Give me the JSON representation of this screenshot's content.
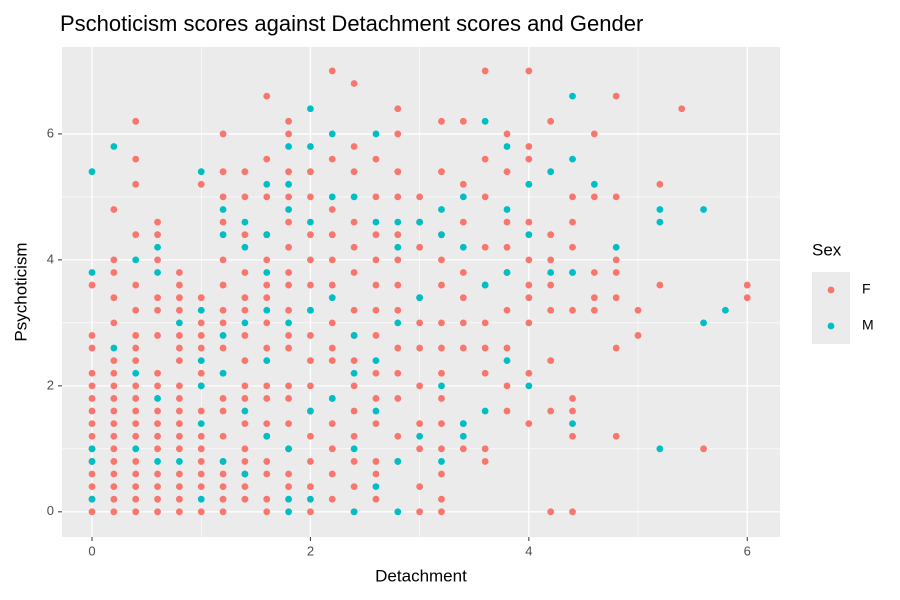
{
  "chart_data": {
    "type": "scatter",
    "title": "Pschoticism scores against Detachment scores and Gender",
    "x_label": "Detachment",
    "y_label": "Psychoticism",
    "legend_title": "Sex",
    "xlim": [
      -0.275,
      6.3
    ],
    "ylim": [
      -0.4,
      7.38
    ],
    "xticks": [
      0,
      2,
      4,
      6
    ],
    "yticks": [
      0,
      2,
      4,
      6
    ],
    "grid": true,
    "legend": "right",
    "series": [
      {
        "name": "F",
        "color": "#f8766d",
        "x": [
          0,
          0,
          0,
          0,
          0,
          0,
          0,
          0,
          0,
          0,
          0,
          0,
          0,
          0,
          0,
          0.2,
          0.2,
          0.2,
          0.2,
          0.2,
          0.2,
          0.2,
          0.2,
          0.2,
          0.2,
          0.2,
          0.2,
          0.2,
          0.2,
          0.2,
          0.2,
          0.2,
          0.2,
          0.4,
          0.4,
          0.4,
          0.4,
          0.4,
          0.4,
          0.4,
          0.4,
          0.4,
          0.4,
          0.4,
          0.4,
          0.4,
          0.4,
          0.4,
          0.4,
          0.4,
          0.4,
          0.4,
          0.6,
          0.6,
          0.6,
          0.6,
          0.6,
          0.6,
          0.6,
          0.6,
          0.6,
          0.6,
          0.6,
          0.6,
          0.6,
          0.6,
          0.6,
          0.6,
          0.8,
          0.8,
          0.8,
          0.8,
          0.8,
          0.8,
          0.8,
          0.8,
          0.8,
          0.8,
          0.8,
          0.8,
          0.8,
          0.8,
          0.8,
          0.8,
          0.8,
          1,
          1,
          1,
          1,
          1,
          1,
          1,
          1,
          1,
          1,
          1,
          1,
          1,
          1,
          1.2,
          1.2,
          1.2,
          1.2,
          1.2,
          1.2,
          1.2,
          1.2,
          1.2,
          1.2,
          1.2,
          1.2,
          1.2,
          1.2,
          1.2,
          1.2,
          1.2,
          1.2,
          1.4,
          1.4,
          1.4,
          1.4,
          1.4,
          1.4,
          1.4,
          1.4,
          1.4,
          1.4,
          1.4,
          1.4,
          1.4,
          1.4,
          1.4,
          1.4,
          1.6,
          1.6,
          1.6,
          1.6,
          1.6,
          1.6,
          1.6,
          1.6,
          1.6,
          1.6,
          1.6,
          1.6,
          1.6,
          1.6,
          1.6,
          1.6,
          1.6,
          1.8,
          1.8,
          1.8,
          1.8,
          1.8,
          1.8,
          1.8,
          1.8,
          1.8,
          1.8,
          1.8,
          1.8,
          1.8,
          1.8,
          1.8,
          1.8,
          1.8,
          2,
          2,
          2,
          2,
          2,
          2,
          2,
          2,
          2,
          2,
          2,
          2,
          2,
          2,
          2.2,
          2.2,
          2.2,
          2.2,
          2.2,
          2.2,
          2.2,
          2.2,
          2.2,
          2.2,
          2.2,
          2.2,
          2.2,
          2.2,
          2.4,
          2.4,
          2.4,
          2.4,
          2.4,
          2.4,
          2.4,
          2.4,
          2.4,
          2.4,
          2.4,
          2.4,
          2.4,
          2.4,
          2.4,
          2.6,
          2.6,
          2.6,
          2.6,
          2.6,
          2.6,
          2.6,
          2.6,
          2.6,
          2.6,
          2.6,
          2.6,
          2.6,
          2.8,
          2.8,
          2.8,
          2.8,
          2.8,
          2.8,
          2.8,
          2.8,
          2.8,
          2.8,
          2.8,
          2.8,
          2.8,
          3,
          3,
          3,
          3,
          3,
          3,
          3,
          3,
          3,
          3,
          3,
          3.2,
          3.2,
          3.2,
          3.2,
          3.2,
          3.2,
          3.2,
          3.2,
          3.2,
          3.2,
          3.2,
          3.2,
          3.2,
          3.2,
          3.4,
          3.4,
          3.4,
          3.4,
          3.4,
          3.4,
          3.4,
          3.4,
          3.4,
          3.6,
          3.6,
          3.6,
          3.6,
          3.6,
          3.6,
          3.6,
          3.6,
          3.6,
          3.6,
          3.8,
          3.8,
          3.8,
          3.8,
          3.8,
          3.8,
          3.8,
          3.8,
          3.8,
          4,
          4,
          4,
          4,
          4,
          4,
          4,
          4,
          4,
          4,
          4.2,
          4.2,
          4.2,
          4.2,
          4.2,
          4.2,
          4.2,
          4.2,
          4.4,
          4.4,
          4.4,
          4.4,
          4.4,
          4.4,
          4.4,
          4.4,
          4.4,
          4.6,
          4.6,
          4.6,
          4.6,
          4.6,
          4.8,
          4.8,
          4.8,
          4.8,
          4.8,
          4.8,
          4.8,
          5,
          5,
          5.2,
          5.2,
          5.4,
          5.6,
          6,
          6
        ],
        "values": [
          0,
          0.2,
          0.4,
          0.6,
          0.8,
          1,
          1.2,
          1.4,
          1.6,
          1.8,
          2,
          2.2,
          2.6,
          2.8,
          3.6,
          0,
          0.2,
          0.4,
          0.6,
          0.8,
          1,
          1.2,
          1.4,
          1.6,
          1.8,
          2,
          2.2,
          2.4,
          3,
          3.4,
          3.8,
          4,
          4.8,
          0,
          0.2,
          0.4,
          0.6,
          0.8,
          1.2,
          1.4,
          1.6,
          1.8,
          2,
          2.4,
          2.6,
          2.8,
          3.2,
          3.6,
          4.4,
          5.2,
          5.6,
          6.2,
          0,
          0.2,
          0.4,
          0.6,
          1,
          1.2,
          1.4,
          1.6,
          2,
          2.2,
          2.8,
          3.2,
          3.4,
          4,
          4.4,
          4.6,
          0,
          0.2,
          0.4,
          0.6,
          1,
          1.2,
          1.4,
          1.6,
          1.8,
          2,
          2.4,
          2.6,
          2.8,
          3.2,
          3.4,
          3.6,
          3.8,
          0,
          0.4,
          0.6,
          0.8,
          1,
          1.2,
          1.6,
          2,
          2.2,
          2.6,
          2.8,
          3,
          3.4,
          5.2,
          0,
          0.2,
          0.4,
          0.6,
          0.8,
          1.2,
          1.6,
          1.8,
          2.2,
          2.6,
          3,
          3.2,
          3.6,
          4,
          4.6,
          5,
          5.4,
          6,
          0.2,
          0.4,
          0.6,
          0.8,
          1,
          1.4,
          1.8,
          2,
          2.4,
          2.8,
          3.2,
          3.4,
          3.8,
          4.4,
          5,
          5.4,
          0,
          0.2,
          0.6,
          0.8,
          1.2,
          1.4,
          1.8,
          2,
          2.6,
          3,
          3.4,
          3.6,
          4,
          4.4,
          5,
          5.6,
          6.6,
          0.4,
          0.6,
          1,
          1.4,
          1.8,
          2,
          2.6,
          2.8,
          3.2,
          3.6,
          3.8,
          4.2,
          4.6,
          5,
          5.4,
          6,
          6.2,
          0,
          0.4,
          0.8,
          1.2,
          1.6,
          2,
          2.4,
          2.8,
          3.2,
          3.6,
          4,
          4.4,
          5,
          5.4,
          0.2,
          0.6,
          1,
          1.4,
          1.8,
          2.4,
          2.6,
          3,
          3.6,
          4,
          4.4,
          4.8,
          5.6,
          7,
          0,
          0.4,
          0.8,
          1.2,
          1.6,
          2,
          2.4,
          2.8,
          3.2,
          3.8,
          4.2,
          4.6,
          5.4,
          5.8,
          6.8,
          0.2,
          0.6,
          0.8,
          1.4,
          1.8,
          2.2,
          2.8,
          3.2,
          3.6,
          4,
          4.4,
          5,
          5.6,
          0.8,
          1.2,
          1.8,
          2.2,
          2.6,
          3.2,
          3.6,
          4,
          4.4,
          5,
          5.4,
          6,
          6.4,
          0,
          0.4,
          1,
          1.4,
          2,
          2.6,
          3,
          3.4,
          4.2,
          4.6,
          5,
          0,
          0.2,
          0.6,
          1,
          1.4,
          1.8,
          2.2,
          2.6,
          3,
          3.6,
          4,
          4.4,
          5.4,
          6.2,
          1,
          1.4,
          2.6,
          3,
          3.4,
          3.8,
          4.6,
          5.2,
          6.2,
          0.8,
          1,
          2.2,
          2.6,
          3,
          3.6,
          4.2,
          5,
          5.6,
          7,
          1.6,
          2,
          2.6,
          3.2,
          3.8,
          4.2,
          4.6,
          5.4,
          6,
          1.4,
          2.2,
          3,
          3.4,
          3.6,
          4,
          4.6,
          5.6,
          5.8,
          7,
          0,
          1.6,
          2.4,
          3.2,
          3.6,
          4,
          4.4,
          6.2,
          0,
          1.2,
          1.6,
          1.8,
          3.2,
          3.8,
          4.2,
          4.6,
          5,
          3.2,
          3.4,
          3.8,
          5,
          6,
          1.2,
          2.6,
          3.4,
          3.8,
          4,
          5,
          6.6,
          2.8,
          3.2,
          3.6,
          5.2,
          6.4,
          1,
          3.4,
          3.6
        ]
      },
      {
        "name": "M",
        "color": "#00bfc4",
        "x": [
          0,
          0,
          0,
          0,
          0,
          0.2,
          0.2,
          0.4,
          0.4,
          0.4,
          0.6,
          0.6,
          0.6,
          0.6,
          0.8,
          0.8,
          1,
          1,
          1,
          1,
          1,
          1,
          1.2,
          1.2,
          1.2,
          1.2,
          1.2,
          1.4,
          1.4,
          1.4,
          1.4,
          1.4,
          1.6,
          1.6,
          1.6,
          1.6,
          1.6,
          1.6,
          1.8,
          1.8,
          1.8,
          1.8,
          1.8,
          1.8,
          1.8,
          2,
          2,
          2,
          2,
          2,
          2,
          2.2,
          2.2,
          2.2,
          2.2,
          2.4,
          2.4,
          2.4,
          2.4,
          2.4,
          2.6,
          2.6,
          2.6,
          2.6,
          2.6,
          2.8,
          2.8,
          2.8,
          2.8,
          2.8,
          3,
          3,
          3,
          3.2,
          3.2,
          3.2,
          3.2,
          3.4,
          3.4,
          3.4,
          3.4,
          3.6,
          3.6,
          3.6,
          3.8,
          3.8,
          3.8,
          3.8,
          4,
          4,
          4,
          4.2,
          4.2,
          4.4,
          4.4,
          4.4,
          4.4,
          4.6,
          4.8,
          5.2,
          5.2,
          5.2,
          5.6,
          5.6,
          5.8
        ],
        "values": [
          0.2,
          0.8,
          1,
          3.8,
          5.4,
          2.6,
          5.8,
          1,
          2.2,
          4,
          0.8,
          1.8,
          3.8,
          4.2,
          0.8,
          3,
          0.2,
          1.4,
          2,
          2.4,
          3.2,
          5.4,
          0.8,
          2.2,
          2.8,
          4.4,
          4.8,
          0.6,
          1.6,
          3,
          4.2,
          4.6,
          1.2,
          2.4,
          3.2,
          3.8,
          4.4,
          5.2,
          0,
          0.2,
          1,
          3,
          4.8,
          5.2,
          5.8,
          0.2,
          1.6,
          3.2,
          4.6,
          5.8,
          6.4,
          1.8,
          3.4,
          5,
          6,
          0,
          1,
          2.2,
          2.8,
          5,
          0.4,
          1.6,
          2.4,
          4.6,
          6,
          0,
          0.8,
          3,
          4.2,
          4.6,
          1.2,
          3.4,
          4.6,
          0.8,
          2,
          4.4,
          4.8,
          1.2,
          1.4,
          4.2,
          5,
          1.6,
          3.6,
          6.2,
          2.4,
          3.8,
          4.8,
          5.8,
          2,
          4.4,
          5.2,
          3.8,
          5.4,
          1.4,
          3.8,
          5.6,
          6.6,
          5.2,
          4.2,
          1,
          4.6,
          4.8,
          3,
          4.8,
          3.2
        ]
      }
    ]
  }
}
